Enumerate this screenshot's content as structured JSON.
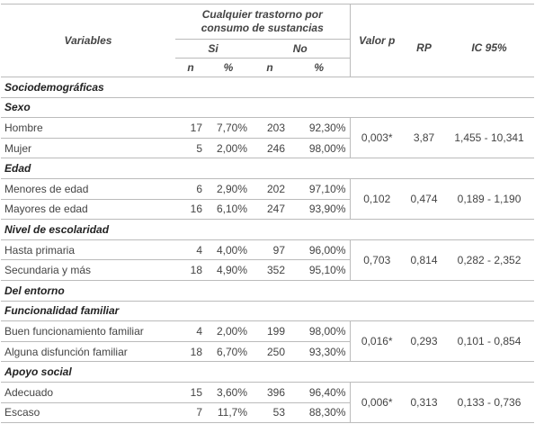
{
  "table": {
    "header": {
      "variables": "Variables",
      "group": "Cualquier trastorno por consumo de sustancias",
      "si": "Si",
      "no": "No",
      "subheaders": [
        "n",
        "%",
        "n",
        "%"
      ],
      "valor_p": "Valor p",
      "rp": "RP",
      "ic": "IC 95%"
    },
    "sections": [
      {
        "title": "Sociodemográficas",
        "groups": [
          {
            "title": "Sexo",
            "rows": [
              [
                "Hombre",
                "17",
                "7,70%",
                "203",
                "92,30%"
              ],
              [
                "Mujer",
                "5",
                "2,00%",
                "246",
                "98,00%"
              ]
            ],
            "p": "0,003*",
            "rp": "3,87",
            "ic": "1,455 - 10,341"
          },
          {
            "title": "Edad",
            "rows": [
              [
                "Menores de edad",
                "6",
                "2,90%",
                "202",
                "97,10%"
              ],
              [
                "Mayores de edad",
                "16",
                "6,10%",
                "247",
                "93,90%"
              ]
            ],
            "p": "0,102",
            "rp": "0,474",
            "ic": "0,189 - 1,190"
          },
          {
            "title": "Nivel de escolaridad",
            "rows": [
              [
                "Hasta primaria",
                "4",
                "4,00%",
                "97",
                "96,00%"
              ],
              [
                "Secundaria y más",
                "18",
                "4,90%",
                "352",
                "95,10%"
              ]
            ],
            "p": "0,703",
            "rp": "0,814",
            "ic": "0,282 - 2,352"
          }
        ]
      },
      {
        "title": "Del entorno",
        "groups": [
          {
            "title": "Funcionalidad familiar",
            "rows": [
              [
                "Buen funcionamiento familiar",
                "4",
                "2,00%",
                "199",
                "98,00%"
              ],
              [
                "Alguna disfunción familiar",
                "18",
                "6,70%",
                "250",
                "93,30%"
              ]
            ],
            "p": "0,016*",
            "rp": "0,293",
            "ic": "0,101 - 0,854"
          },
          {
            "title": "Apoyo social",
            "rows": [
              [
                "Adecuado",
                "15",
                "3,60%",
                "396",
                "96,40%"
              ],
              [
                "Escaso",
                "7",
                "11,7%",
                "53",
                "88,30%"
              ]
            ],
            "p": "0,006*",
            "rp": "0,313",
            "ic": "0,133 - 0,736"
          }
        ]
      }
    ]
  }
}
